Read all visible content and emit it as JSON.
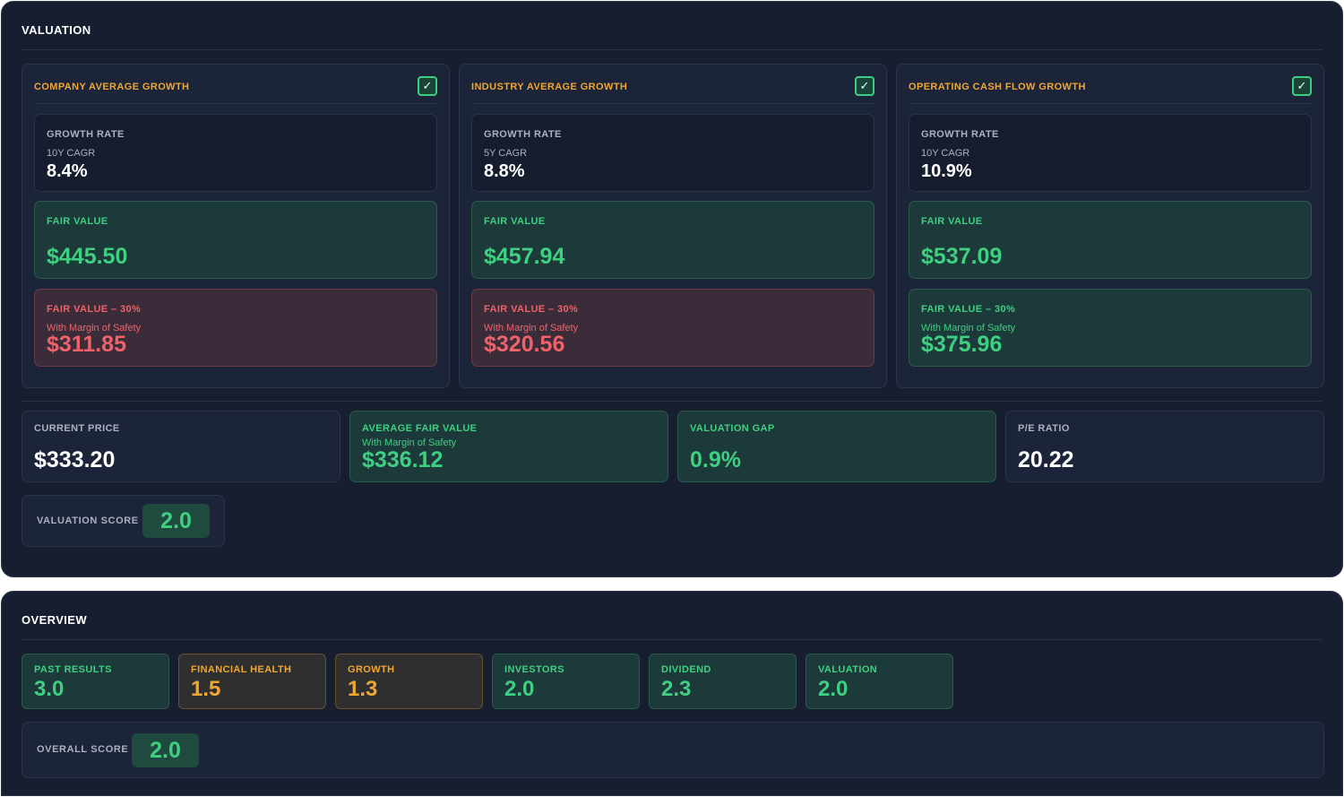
{
  "valuation": {
    "title": "VALUATION",
    "methods": [
      {
        "title": "COMPANY AVERAGE GROWTH",
        "checked": true,
        "growth_label": "GROWTH RATE",
        "growth_period": "10Y CAGR",
        "growth_value": "8.4%",
        "fair_label": "FAIR VALUE",
        "fair_value": "$445.50",
        "mos_label": "FAIR VALUE – 30%",
        "mos_note": "With Margin of Safety",
        "mos_value": "$311.85",
        "mos_status": "negative"
      },
      {
        "title": "INDUSTRY AVERAGE GROWTH",
        "checked": true,
        "growth_label": "GROWTH RATE",
        "growth_period": "5Y CAGR",
        "growth_value": "8.8%",
        "fair_label": "FAIR VALUE",
        "fair_value": "$457.94",
        "mos_label": "FAIR VALUE – 30%",
        "mos_note": "With Margin of Safety",
        "mos_value": "$320.56",
        "mos_status": "negative"
      },
      {
        "title": "OPERATING CASH FLOW GROWTH",
        "checked": true,
        "growth_label": "GROWTH RATE",
        "growth_period": "10Y CAGR",
        "growth_value": "10.9%",
        "fair_label": "FAIR VALUE",
        "fair_value": "$537.09",
        "mos_label": "FAIR VALUE – 30%",
        "mos_note": "With Margin of Safety",
        "mos_value": "$375.96",
        "mos_status": "positive"
      }
    ],
    "metrics": {
      "current_price": {
        "label": "CURRENT PRICE",
        "value": "$333.20"
      },
      "average_fair_value": {
        "label": "AVERAGE FAIR VALUE",
        "note": "With Margin of Safety",
        "value": "$336.12"
      },
      "valuation_gap": {
        "label": "VALUATION GAP",
        "value": "0.9%"
      },
      "pe_ratio": {
        "label": "P/E RATIO",
        "value": "20.22"
      }
    },
    "score": {
      "label": "VALUATION SCORE",
      "value": "2.0"
    }
  },
  "overview": {
    "title": "OVERVIEW",
    "tiles": [
      {
        "label": "PAST RESULTS",
        "value": "3.0",
        "tone": "green"
      },
      {
        "label": "FINANCIAL HEALTH",
        "value": "1.5",
        "tone": "orange"
      },
      {
        "label": "GROWTH",
        "value": "1.3",
        "tone": "orange"
      },
      {
        "label": "INVESTORS",
        "value": "2.0",
        "tone": "green"
      },
      {
        "label": "DIVIDEND",
        "value": "2.3",
        "tone": "green"
      },
      {
        "label": "VALUATION",
        "value": "2.0",
        "tone": "green"
      }
    ],
    "overall": {
      "label": "OVERALL SCORE",
      "value": "2.0"
    }
  },
  "colors": {
    "background": "#161e30",
    "positive": "#3ecf80",
    "negative": "#f0626a",
    "warning": "#f0a732"
  },
  "icons": {
    "method_checkbox": "checkmark-icon"
  }
}
